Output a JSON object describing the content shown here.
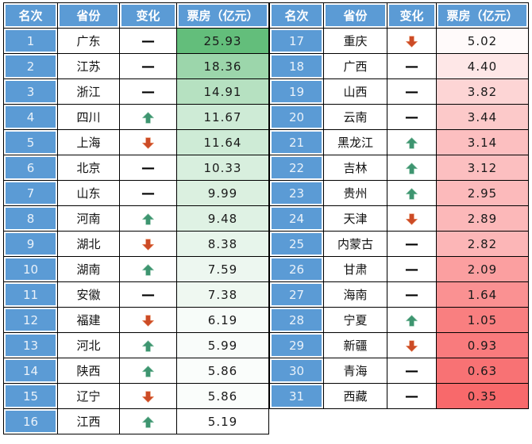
{
  "colors": {
    "page_bg": "#FFFFFF",
    "header_bg": "#5B9BD5",
    "header_text": "#FFFFFF",
    "rank_text": "#EAF2FA",
    "grid": "#000000",
    "cell_rim": "#FFFFFF",
    "flat": "#000000"
  },
  "icon_colors": {
    "up_fill": "#3E9570",
    "up_halo": "#9BCDB5",
    "down_fill": "#CC4B26",
    "down_halo": "#ED9C77"
  },
  "icons": {
    "up": "up-arrow-icon",
    "down": "down-arrow-icon",
    "flat": "dash-icon",
    "flat_glyph": "—"
  },
  "chart_data": {
    "type": "table",
    "columns": [
      "名次",
      "省份",
      "变化",
      "票房（亿元）"
    ],
    "value_scale": {
      "style": "green-white-red heatmap",
      "max_color": "#63BE7B",
      "mid_color": "#FFFFFF",
      "min_color": "#F8696B",
      "max": 25.93,
      "mid": 5.19,
      "min": 0.35
    },
    "tables": [
      {
        "rows": [
          {
            "rank": "1",
            "province": "广东",
            "change": "flat",
            "value": "25.93",
            "value_bg": "#63BE7B"
          },
          {
            "rank": "2",
            "province": "江苏",
            "change": "flat",
            "value": "18.36",
            "value_bg": "#9CD6AB"
          },
          {
            "rank": "3",
            "province": "浙江",
            "change": "flat",
            "value": "14.91",
            "value_bg": "#B6E1C1"
          },
          {
            "rank": "4",
            "province": "四川",
            "change": "up",
            "value": "11.67",
            "value_bg": "#CEEBD6"
          },
          {
            "rank": "5",
            "province": "上海",
            "change": "down",
            "value": "11.64",
            "value_bg": "#CEEBD6"
          },
          {
            "rank": "6",
            "province": "北京",
            "change": "flat",
            "value": "10.33",
            "value_bg": "#D8EFDE"
          },
          {
            "rank": "7",
            "province": "山东",
            "change": "flat",
            "value": "9.99",
            "value_bg": "#DBF0E0"
          },
          {
            "rank": "8",
            "province": "河南",
            "change": "up",
            "value": "9.48",
            "value_bg": "#DFF2E4"
          },
          {
            "rank": "9",
            "province": "湖北",
            "change": "down",
            "value": "8.38",
            "value_bg": "#E7F5EB"
          },
          {
            "rank": "10",
            "province": "湖南",
            "change": "up",
            "value": "7.59",
            "value_bg": "#EDF7F0"
          },
          {
            "rank": "11",
            "province": "安徽",
            "change": "flat",
            "value": "7.38",
            "value_bg": "#EFF8F1"
          },
          {
            "rank": "12",
            "province": "福建",
            "change": "down",
            "value": "6.19",
            "value_bg": "#F7FCF9"
          },
          {
            "rank": "13",
            "province": "河北",
            "change": "up",
            "value": "5.99",
            "value_bg": "#F9FCFA"
          },
          {
            "rank": "14",
            "province": "陕西",
            "change": "up",
            "value": "5.86",
            "value_bg": "#FAFDFB"
          },
          {
            "rank": "15",
            "province": "辽宁",
            "change": "down",
            "value": "5.86",
            "value_bg": "#FAFDFB"
          },
          {
            "rank": "16",
            "province": "江西",
            "change": "up",
            "value": "5.19",
            "value_bg": "#FFFFFF"
          }
        ]
      },
      {
        "rows": [
          {
            "rank": "17",
            "province": "重庆",
            "change": "down",
            "value": "5.02",
            "value_bg": "#FFFAFA"
          },
          {
            "rank": "18",
            "province": "广西",
            "change": "flat",
            "value": "4.40",
            "value_bg": "#FEE7E7"
          },
          {
            "rank": "19",
            "province": "山西",
            "change": "flat",
            "value": "3.82",
            "value_bg": "#FDD5D5"
          },
          {
            "rank": "20",
            "province": "云南",
            "change": "flat",
            "value": "3.44",
            "value_bg": "#FCC9C9"
          },
          {
            "rank": "21",
            "province": "黑龙江",
            "change": "up",
            "value": "3.14",
            "value_bg": "#FCBFC0"
          },
          {
            "rank": "22",
            "province": "吉林",
            "change": "up",
            "value": "3.12",
            "value_bg": "#FCBFC0"
          },
          {
            "rank": "23",
            "province": "贵州",
            "change": "up",
            "value": "2.95",
            "value_bg": "#FCBABB"
          },
          {
            "rank": "24",
            "province": "天津",
            "change": "down",
            "value": "2.89",
            "value_bg": "#FCB8B9"
          },
          {
            "rank": "25",
            "province": "内蒙古",
            "change": "flat",
            "value": "2.82",
            "value_bg": "#FCB6B7"
          },
          {
            "rank": "26",
            "province": "甘肃",
            "change": "flat",
            "value": "2.09",
            "value_bg": "#FB9FA0"
          },
          {
            "rank": "27",
            "province": "海南",
            "change": "flat",
            "value": "1.64",
            "value_bg": "#FA9192"
          },
          {
            "rank": "28",
            "province": "宁夏",
            "change": "up",
            "value": "1.05",
            "value_bg": "#F97F80"
          },
          {
            "rank": "29",
            "province": "新疆",
            "change": "down",
            "value": "0.93",
            "value_bg": "#F97B7D"
          },
          {
            "rank": "30",
            "province": "青海",
            "change": "flat",
            "value": "0.63",
            "value_bg": "#F87274"
          },
          {
            "rank": "31",
            "province": "西藏",
            "change": "flat",
            "value": "0.35",
            "value_bg": "#F8696B"
          }
        ]
      }
    ]
  }
}
